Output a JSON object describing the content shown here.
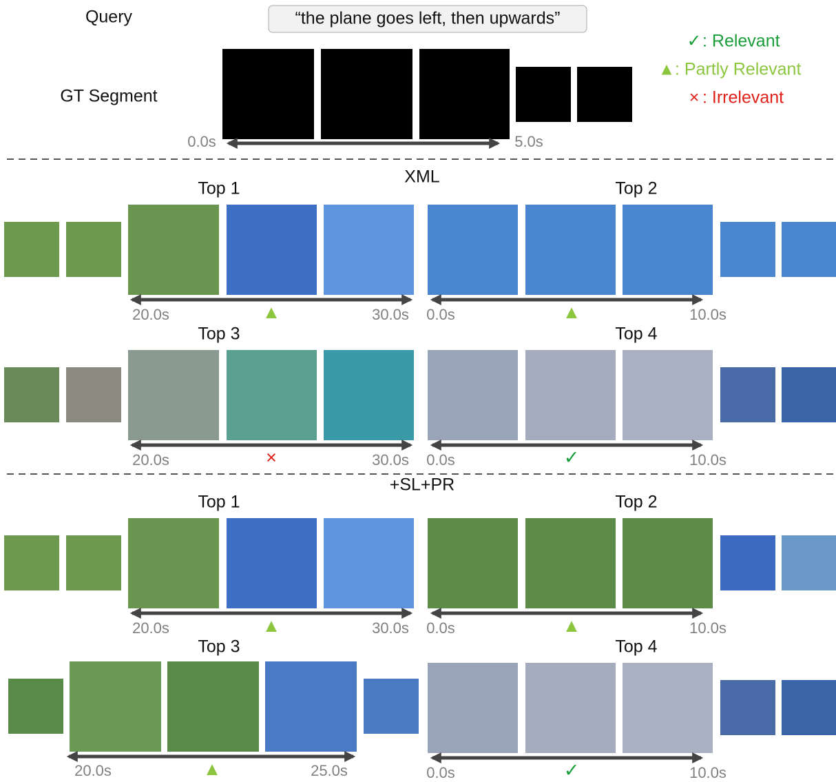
{
  "query": {
    "label": "Query",
    "text": "“the plane goes left, then upwards”"
  },
  "gt_segment": {
    "label": "GT Segment",
    "start": "0.0s",
    "end": "5.0s"
  },
  "legend": [
    {
      "symbol": "✓",
      "label": ": Relevant"
    },
    {
      "symbol": "▲",
      "label": ": Partly Relevant"
    },
    {
      "symbol": "×",
      "label": ": Irrelevant"
    }
  ],
  "sections": [
    {
      "title": "XML",
      "results": [
        {
          "title": "Top 1",
          "start": "20.0s",
          "end": "30.0s",
          "relevance": "▲"
        },
        {
          "title": "Top 2",
          "start": "0.0s",
          "end": "10.0s",
          "relevance": "▲"
        },
        {
          "title": "Top 3",
          "start": "20.0s",
          "end": "30.0s",
          "relevance": "×"
        },
        {
          "title": "Top 4",
          "start": "0.0s",
          "end": "10.0s",
          "relevance": "✓"
        }
      ]
    },
    {
      "title": "+SL+PR",
      "results": [
        {
          "title": "Top 1",
          "start": "20.0s",
          "end": "30.0s",
          "relevance": "▲"
        },
        {
          "title": "Top 2",
          "start": "0.0s",
          "end": "10.0s",
          "relevance": "▲"
        },
        {
          "title": "Top 3",
          "start": "20.0s",
          "end": "25.0s",
          "relevance": "▲"
        },
        {
          "title": "Top 4",
          "start": "0.0s",
          "end": "10.0s",
          "relevance": "✓"
        }
      ]
    }
  ]
}
